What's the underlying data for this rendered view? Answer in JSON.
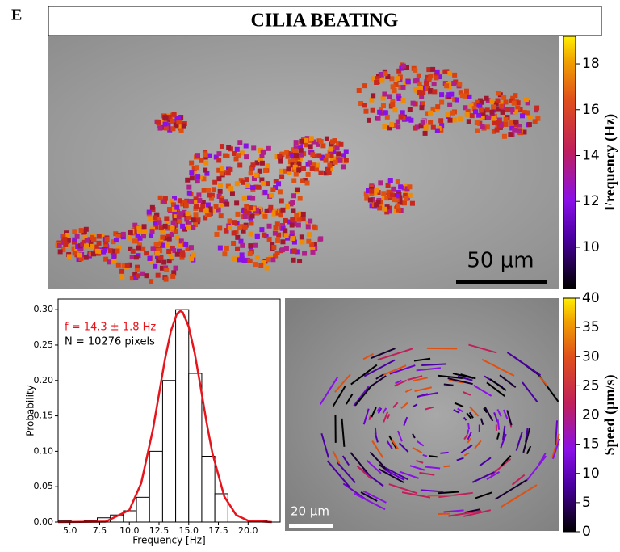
{
  "panel_label": "E",
  "title": "CILIA BEATING",
  "frequency_map": {
    "scale_bar": "50 µm",
    "colorbar": {
      "label": "Frequency (Hz)",
      "lim": [
        8.2,
        19.2
      ],
      "ticks": [
        10,
        12,
        14,
        16,
        18
      ]
    }
  },
  "chart_data": {
    "type": "histogram",
    "xlabel": "Frequency [Hz]",
    "ylabel": "Probability",
    "bins": [
      4.0,
      5.1,
      6.2,
      7.3,
      8.4,
      9.5,
      10.6,
      11.7,
      12.8,
      13.9,
      15.0,
      16.1,
      17.2,
      18.3,
      19.4,
      20.5,
      21.6,
      22.7
    ],
    "values": [
      0.002,
      0,
      0.002,
      0.006,
      0.01,
      0.016,
      0.035,
      0.1,
      0.2,
      0.3,
      0.21,
      0.093,
      0.04,
      0,
      0,
      0.002,
      0
    ],
    "color": "#000000",
    "fit_x": [
      4,
      8,
      10,
      11,
      12,
      12.5,
      13,
      13.5,
      14,
      14.3,
      14.5,
      15,
      15.5,
      16,
      16.5,
      17,
      18,
      19,
      20,
      22
    ],
    "fit_y": [
      0,
      0.0006,
      0.017,
      0.055,
      0.132,
      0.181,
      0.23,
      0.27,
      0.294,
      0.298,
      0.296,
      0.276,
      0.239,
      0.191,
      0.141,
      0.097,
      0.036,
      0.01,
      0.002,
      0
    ],
    "fit_color": "#e8141c",
    "annotations": [
      "f = 14.3 ± 1.8 Hz",
      "N = 10276 pixels"
    ],
    "xlim": [
      4.0,
      22.7
    ],
    "ylim": [
      0,
      0.315
    ],
    "xticks": [
      {
        "value": 5,
        "label": "5.0"
      },
      {
        "value": 7.5,
        "label": "7.5"
      },
      {
        "value": 10,
        "label": "10.0"
      },
      {
        "value": 12.5,
        "label": "12.5"
      },
      {
        "value": 15,
        "label": "15.0"
      },
      {
        "value": 17.5,
        "label": "17.5"
      },
      {
        "value": 20,
        "label": "20.0"
      }
    ],
    "yticks": [
      {
        "value": 0,
        "label": "0.00"
      },
      {
        "value": 0.05,
        "label": "0.05"
      },
      {
        "value": 0.1,
        "label": "0.10"
      },
      {
        "value": 0.15,
        "label": "0.15"
      },
      {
        "value": 0.2,
        "label": "0.20"
      },
      {
        "value": 0.25,
        "label": "0.25"
      },
      {
        "value": 0.3,
        "label": "0.30"
      }
    ]
  },
  "speed_map": {
    "scale_bar": "20 µm",
    "colorbar": {
      "label": "Speed (µm/s)",
      "lim": [
        0,
        40
      ],
      "ticks": [
        0,
        5,
        10,
        15,
        20,
        25,
        30,
        35,
        40
      ]
    }
  }
}
